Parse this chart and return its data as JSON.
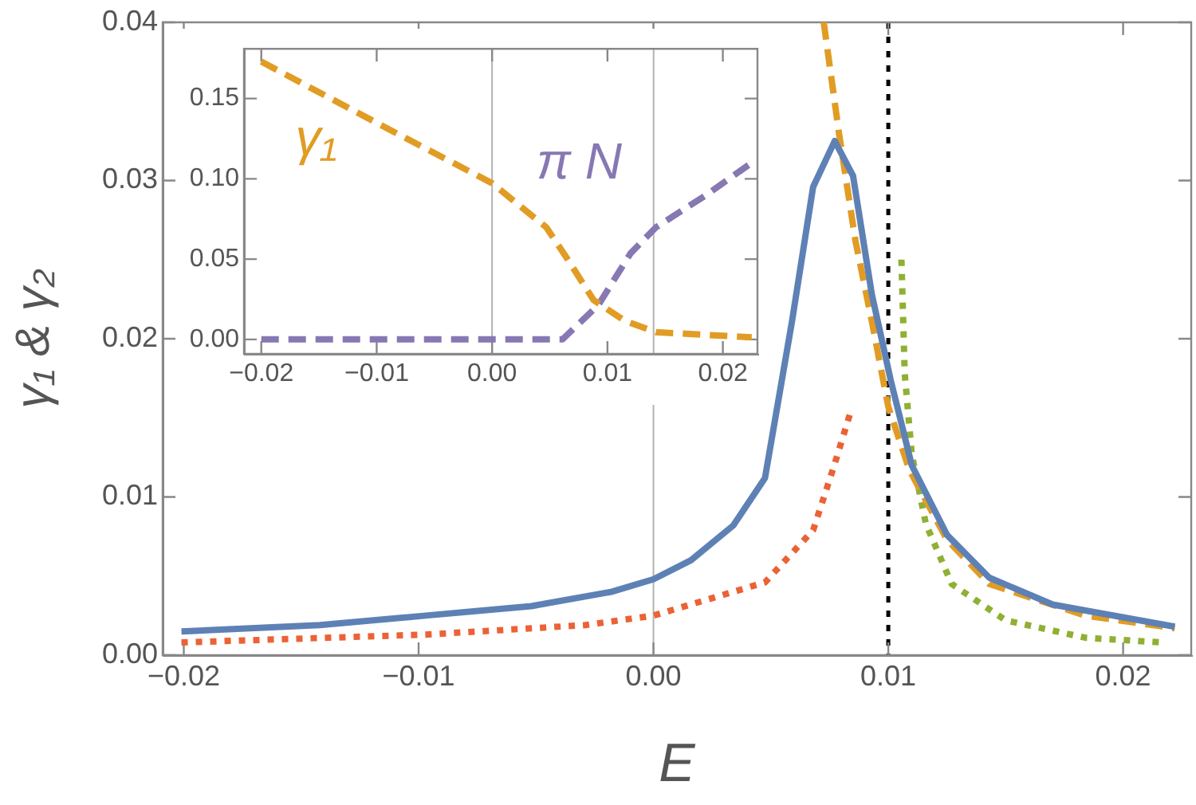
{
  "chart_data": [
    {
      "type": "line",
      "xlabel": "E",
      "ylabel": "γ₁ & γ₂",
      "grid": false,
      "legend": false,
      "marker": "none",
      "xlim": [
        -0.0209,
        0.0229
      ],
      "ylim": [
        0,
        0.04
      ],
      "xticks": [
        {
          "value": -0.02,
          "label": "−0.02"
        },
        {
          "value": -0.01,
          "label": "−0.01"
        },
        {
          "value": 0,
          "label": "0.00"
        },
        {
          "value": 0.01,
          "label": "0.01"
        },
        {
          "value": 0.02,
          "label": "0.02"
        }
      ],
      "yticks": [
        {
          "value": 0,
          "label": "0.00"
        },
        {
          "value": 0.01,
          "label": "0.01"
        },
        {
          "value": 0.02,
          "label": "0.02"
        },
        {
          "value": 0.03,
          "label": "0.03"
        },
        {
          "value": 0.04,
          "label": "0.04"
        }
      ],
      "ref_lines": [
        {
          "axis": "x",
          "value": 0,
          "color": "#b3b3b3",
          "line_style": "solid"
        },
        {
          "axis": "x",
          "value": 0.01,
          "color": "#000000",
          "line_style": "dotted"
        }
      ],
      "series": [
        {
          "color": "#5e81b5",
          "line_style": "solid",
          "x": [
            -0.0201,
            -0.0142,
            -0.0097,
            -0.0052,
            -0.0018,
            0,
            0.0016,
            0.0034,
            0.00475,
            0.0059,
            0.0068,
            0.00772,
            0.0085,
            0.0093,
            0.0101,
            0.011,
            0.0125,
            0.0143,
            0.017,
            0.0222
          ],
          "values": [
            0.0015,
            0.0019,
            0.0025,
            0.0031,
            0.004,
            0.0048,
            0.006,
            0.0082,
            0.0112,
            0.0211,
            0.0296,
            0.0325,
            0.0303,
            0.0228,
            0.0174,
            0.012,
            0.0076,
            0.0049,
            0.0032,
            0.0018
          ]
        },
        {
          "color": "#e19c24",
          "line_style": "dashed",
          "x": [
            0.00725,
            0.0079,
            0.0086,
            0.0093,
            0.01,
            0.0109,
            0.0125,
            0.0143,
            0.0184,
            0.0222
          ],
          "values": [
            0.04,
            0.033,
            0.0262,
            0.0211,
            0.0157,
            0.0117,
            0.0073,
            0.0045,
            0.0025,
            0.0017
          ]
        },
        {
          "color": "#eb6235",
          "line_style": "dotted",
          "x": [
            -0.0201,
            -0.0097,
            -0.0029,
            0,
            0.00475,
            0.0068,
            0.0077,
            0.0084
          ],
          "values": [
            0.0008,
            0.0013,
            0.0019,
            0.0025,
            0.0046,
            0.0079,
            0.012,
            0.0154
          ]
        },
        {
          "color": "#8fb032",
          "line_style": "dotted",
          "x": [
            0.01056,
            0.0107,
            0.011,
            0.0116,
            0.0127,
            0.015,
            0.0184,
            0.0217
          ],
          "values": [
            0.025,
            0.0178,
            0.0127,
            0.0083,
            0.0045,
            0.0022,
            0.0011,
            0.0008
          ]
        }
      ]
    },
    {
      "type": "line",
      "grid": false,
      "legend": false,
      "marker": "none",
      "xlim": [
        -0.0215,
        0.023
      ],
      "ylim": [
        -0.009,
        0.181
      ],
      "xticks": [
        {
          "value": -0.02,
          "label": "−0.02"
        },
        {
          "value": -0.01,
          "label": "−0.01"
        },
        {
          "value": 0,
          "label": "0.00"
        },
        {
          "value": 0.01,
          "label": "0.01"
        },
        {
          "value": 0.02,
          "label": "0.02"
        }
      ],
      "yticks": [
        {
          "value": 0,
          "label": "0.00"
        },
        {
          "value": 0.05,
          "label": "0.05"
        },
        {
          "value": 0.1,
          "label": "0.10"
        },
        {
          "value": 0.15,
          "label": "0.15"
        }
      ],
      "ref_lines": [
        {
          "axis": "x",
          "value": 0,
          "color": "#b3b3b3",
          "line_style": "solid"
        },
        {
          "axis": "x",
          "value": 0.014,
          "color": "#b3b3b3",
          "line_style": "solid"
        }
      ],
      "series": [
        {
          "name": "γ₁",
          "color": "#e19c24",
          "line_style": "dashed",
          "x": [
            -0.02,
            -0.0099,
            0,
            0.0047,
            0.0065,
            0.0088,
            0.0115,
            0.0142,
            0.0225
          ],
          "values": [
            0.173,
            0.1345,
            0.0973,
            0.0698,
            0.0504,
            0.0245,
            0.0116,
            0.0045,
            0.0013
          ]
        },
        {
          "name": "π N",
          "color": "#8778b3",
          "line_style": "dashed",
          "x": [
            -0.02,
            0,
            0.0061,
            0.0092,
            0.012,
            0.0142,
            0.0184,
            0.0225
          ],
          "values": [
            0,
            0,
            0,
            0.0213,
            0.0536,
            0.0698,
            0.0892,
            0.11
          ]
        }
      ]
    }
  ]
}
